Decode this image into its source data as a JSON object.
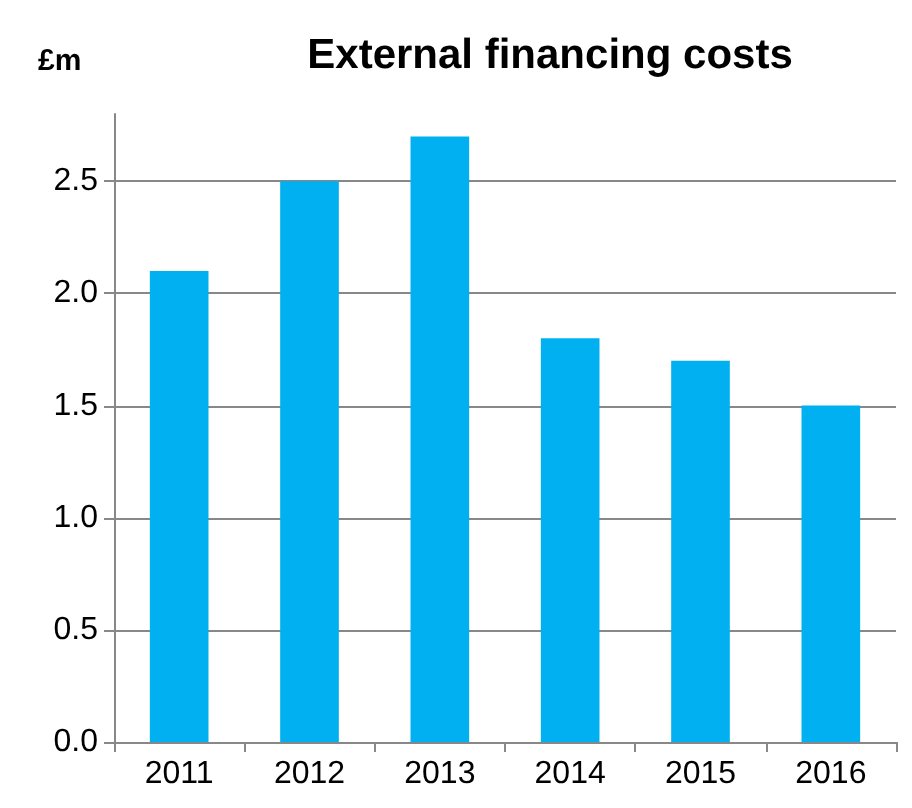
{
  "chart_data": {
    "type": "bar",
    "title": "External financing costs",
    "ylabel": "£m",
    "categories": [
      "2011",
      "2012",
      "2013",
      "2014",
      "2015",
      "2016"
    ],
    "values": [
      2.1,
      2.5,
      2.7,
      1.8,
      1.7,
      1.5
    ],
    "color": "#00b0f0",
    "ylim": [
      0,
      2.8
    ],
    "yticks": [
      {
        "value": 0,
        "label": "0.0"
      },
      0.5,
      {
        "value": 1,
        "label": "1.0"
      },
      1.5,
      {
        "value": 2,
        "label": "2.0"
      },
      2.5
    ],
    "grid": "y"
  }
}
